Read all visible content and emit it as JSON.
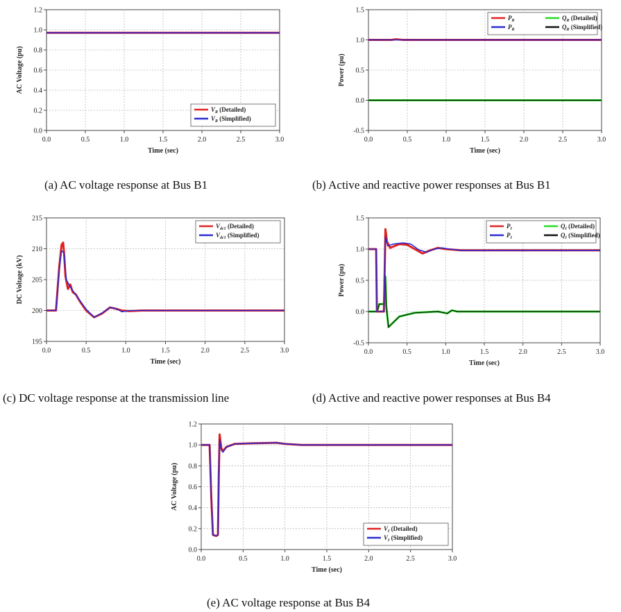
{
  "captions": {
    "a": "(a) AC voltage response at Bus B1",
    "b": "(b) Active and reactive power responses at Bus B1",
    "c": "(c) DC voltage response at the transmission line",
    "d": "(d) Active and reactive power responses at Bus B4",
    "e": "(e) AC voltage response at Bus B4"
  },
  "chart_data": [
    {
      "id": "a",
      "type": "line",
      "xlabel": "Time (sec)",
      "ylabel": "AC Voltage (pu)",
      "xlim": [
        0,
        3.0
      ],
      "ylim": [
        0,
        1.2
      ],
      "xticks": [
        "0.0",
        "0.5",
        "1.0",
        "1.5",
        "2.0",
        "2.5",
        "3.0"
      ],
      "yticks": [
        "0.0",
        "0.2",
        "0.4",
        "0.6",
        "0.8",
        "1.0",
        "1.2"
      ],
      "grid": true,
      "legend_position": "bottom-right",
      "legend": [
        {
          "label": "VR (Detailed)",
          "main": "V",
          "sub": "R",
          "rest": " (Detailed)",
          "color": "#e02020"
        },
        {
          "label": "VR (Simplified)",
          "main": "V",
          "sub": "R",
          "rest": " (Simplified)",
          "color": "#2a2ad0"
        }
      ],
      "series": [
        {
          "name": "VR (Detailed)",
          "color": "#e02020",
          "width": 3,
          "points": [
            [
              0,
              0.97
            ],
            [
              3.0,
              0.97
            ]
          ]
        },
        {
          "name": "VR (Simplified)",
          "color": "#2a2ad0",
          "width": 1.6,
          "points": [
            [
              0,
              0.97
            ],
            [
              3.0,
              0.97
            ]
          ]
        }
      ]
    },
    {
      "id": "b",
      "type": "line",
      "xlabel": "Time (sec)",
      "ylabel": "Power (pu)",
      "xlim": [
        0,
        3.0
      ],
      "ylim": [
        -0.5,
        1.5
      ],
      "xticks": [
        "0.0",
        "0.5",
        "1.0",
        "1.5",
        "2.0",
        "2.5",
        "3.0"
      ],
      "yticks": [
        "-0.5",
        "0.0",
        "0.5",
        "1.0",
        "1.5"
      ],
      "grid": true,
      "legend_position": "top-right",
      "legend_columns": 2,
      "legend": [
        {
          "label": "PR (Detailed)",
          "main": "P",
          "sub": "R",
          "rest": "",
          "color": "#e02020"
        },
        {
          "label": "QR (Detailed)",
          "main": "Q",
          "sub": "R",
          "rest": " (Detailed)",
          "color": "#22dd22"
        },
        {
          "label": "PR (Simplified)",
          "main": "P",
          "sub": "R",
          "rest": "",
          "color": "#2a2ad0"
        },
        {
          "label": "QR (Simplified)",
          "main": "Q",
          "sub": "R",
          "rest": " (Simplified)",
          "color": "#111111"
        }
      ],
      "series": [
        {
          "name": "PR (Detailed)",
          "color": "#e02020",
          "width": 3,
          "points": [
            [
              0,
              1.0
            ],
            [
              0.3,
              1.0
            ],
            [
              0.35,
              1.01
            ],
            [
              0.45,
              1.0
            ],
            [
              3.0,
              1.0
            ]
          ]
        },
        {
          "name": "PR (Simplified)",
          "color": "#2a2ad0",
          "width": 1.6,
          "points": [
            [
              0,
              1.0
            ],
            [
              3.0,
              1.0
            ]
          ]
        },
        {
          "name": "QR (Detailed)",
          "color": "#22dd22",
          "width": 3,
          "points": [
            [
              0,
              0.0
            ],
            [
              3.0,
              0.0
            ]
          ]
        },
        {
          "name": "QR (Simplified)",
          "color": "#111111",
          "width": 1.2,
          "points": [
            [
              0,
              0.0
            ],
            [
              3.0,
              0.0
            ]
          ]
        }
      ]
    },
    {
      "id": "c",
      "type": "line",
      "xlabel": "Time (sec)",
      "ylabel": "DC Voltage (kV)",
      "xlim": [
        0,
        3.0
      ],
      "ylim": [
        195,
        215
      ],
      "xticks": [
        "0.0",
        "0.5",
        "1.0",
        "1.5",
        "2.0",
        "2.5",
        "3.0"
      ],
      "yticks": [
        "195",
        "200",
        "205",
        "210",
        "215"
      ],
      "grid": true,
      "legend_position": "top-right",
      "legend": [
        {
          "label": "Vdc1 (Detailed)",
          "main": "V",
          "sub": "dc1",
          "rest": " (Detailed)",
          "color": "#e02020"
        },
        {
          "label": "Vdc1 (Simplified)",
          "main": "V",
          "sub": "dc1",
          "rest": " (Simplified)",
          "color": "#2a2ad0"
        }
      ],
      "series": [
        {
          "name": "Vdc1 (Detailed)",
          "color": "#e02020",
          "width": 3,
          "points": [
            [
              0,
              200
            ],
            [
              0.12,
              200
            ],
            [
              0.16,
              207
            ],
            [
              0.19,
              210.6
            ],
            [
              0.21,
              211
            ],
            [
              0.22,
              209.5
            ],
            [
              0.24,
              205.5
            ],
            [
              0.27,
              203.5
            ],
            [
              0.3,
              204.2
            ],
            [
              0.33,
              203
            ],
            [
              0.37,
              202.6
            ],
            [
              0.42,
              201.5
            ],
            [
              0.5,
              200
            ],
            [
              0.6,
              198.9
            ],
            [
              0.7,
              199.5
            ],
            [
              0.8,
              200.5
            ],
            [
              0.87,
              200.3
            ],
            [
              0.95,
              200
            ],
            [
              1.05,
              199.9
            ],
            [
              1.2,
              200
            ],
            [
              3.0,
              200
            ]
          ]
        },
        {
          "name": "Vdc1 (Simplified)",
          "color": "#2a2ad0",
          "width": 1.6,
          "points": [
            [
              0,
              200
            ],
            [
              0.12,
              200
            ],
            [
              0.16,
              206.5
            ],
            [
              0.19,
              209.7
            ],
            [
              0.22,
              209.3
            ],
            [
              0.25,
              205
            ],
            [
              0.3,
              203.8
            ],
            [
              0.4,
              202
            ],
            [
              0.5,
              200.2
            ],
            [
              0.6,
              198.9
            ],
            [
              0.7,
              199.6
            ],
            [
              0.8,
              200.5
            ],
            [
              0.88,
              200.3
            ],
            [
              0.95,
              199.8
            ],
            [
              1.05,
              200
            ],
            [
              3.0,
              200
            ]
          ]
        }
      ]
    },
    {
      "id": "d",
      "type": "line",
      "xlabel": "Time (sec)",
      "ylabel": "Power (pu)",
      "xlim": [
        0,
        3.0
      ],
      "ylim": [
        -0.5,
        1.5
      ],
      "xticks": [
        "0.0",
        "0.5",
        "1.0",
        "1.5",
        "2.0",
        "2.5",
        "3.0"
      ],
      "yticks": [
        "-0.5",
        "0.0",
        "0.5",
        "1.0",
        "1.5"
      ],
      "grid": true,
      "legend_position": "top-right",
      "legend_columns": 2,
      "legend": [
        {
          "label": "PI (Detailed)",
          "main": "P",
          "sub": "I",
          "rest": "",
          "color": "#e02020"
        },
        {
          "label": "QI (Detailed)",
          "main": "Q",
          "sub": "I",
          "rest": " (Detailed)",
          "color": "#22dd22"
        },
        {
          "label": "PI (Simplified)",
          "main": "P",
          "sub": "I",
          "rest": "",
          "color": "#2a2ad0"
        },
        {
          "label": "QI (Simplified)",
          "main": "Q",
          "sub": "I",
          "rest": " (Simplified)",
          "color": "#111111"
        }
      ],
      "series": [
        {
          "name": "QI (Detailed)",
          "color": "#22dd22",
          "width": 3,
          "points": [
            [
              0,
              0
            ],
            [
              0.1,
              0
            ],
            [
              0.12,
              0.03
            ],
            [
              0.14,
              0.12
            ],
            [
              0.2,
              0.12
            ],
            [
              0.22,
              0.55
            ],
            [
              0.23,
              0.1
            ],
            [
              0.26,
              -0.25
            ],
            [
              0.3,
              -0.2
            ],
            [
              0.4,
              -0.08
            ],
            [
              0.6,
              -0.02
            ],
            [
              0.9,
              0.0
            ],
            [
              1.02,
              -0.03
            ],
            [
              1.08,
              0.02
            ],
            [
              1.15,
              0
            ],
            [
              3.0,
              0
            ]
          ]
        },
        {
          "name": "QI (Simplified)",
          "color": "#111111",
          "width": 1.2,
          "points": [
            [
              0,
              0
            ],
            [
              0.1,
              0
            ],
            [
              0.12,
              0.03
            ],
            [
              0.14,
              0.12
            ],
            [
              0.2,
              0.12
            ],
            [
              0.22,
              0.58
            ],
            [
              0.23,
              0.1
            ],
            [
              0.26,
              -0.25
            ],
            [
              0.3,
              -0.2
            ],
            [
              0.4,
              -0.08
            ],
            [
              0.6,
              -0.02
            ],
            [
              0.9,
              0.0
            ],
            [
              1.02,
              -0.03
            ],
            [
              1.08,
              0.02
            ],
            [
              1.15,
              0
            ],
            [
              3.0,
              0
            ]
          ]
        },
        {
          "name": "PI (Detailed)",
          "color": "#e02020",
          "width": 3,
          "points": [
            [
              0,
              1.0
            ],
            [
              0.1,
              1.0
            ],
            [
              0.11,
              0.0
            ],
            [
              0.2,
              0.0
            ],
            [
              0.22,
              1.32
            ],
            [
              0.24,
              1.12
            ],
            [
              0.28,
              1.02
            ],
            [
              0.4,
              1.08
            ],
            [
              0.5,
              1.07
            ],
            [
              0.6,
              1.0
            ],
            [
              0.7,
              0.93
            ],
            [
              0.8,
              0.98
            ],
            [
              0.9,
              1.02
            ],
            [
              1.0,
              1.0
            ],
            [
              1.2,
              0.98
            ],
            [
              3.0,
              0.98
            ]
          ]
        },
        {
          "name": "PI (Simplified)",
          "color": "#2a2ad0",
          "width": 1.6,
          "points": [
            [
              0,
              1.0
            ],
            [
              0.1,
              1.0
            ],
            [
              0.11,
              0.0
            ],
            [
              0.2,
              0.0
            ],
            [
              0.22,
              1.2
            ],
            [
              0.25,
              1.05
            ],
            [
              0.32,
              1.08
            ],
            [
              0.45,
              1.1
            ],
            [
              0.55,
              1.08
            ],
            [
              0.65,
              0.99
            ],
            [
              0.75,
              0.95
            ],
            [
              0.85,
              1.0
            ],
            [
              0.95,
              1.02
            ],
            [
              1.05,
              1.0
            ],
            [
              1.2,
              0.98
            ],
            [
              3.0,
              0.98
            ]
          ]
        }
      ]
    },
    {
      "id": "e",
      "type": "line",
      "xlabel": "Time (sec)",
      "ylabel": "AC Voltage (pu)",
      "xlim": [
        0,
        3.0
      ],
      "ylim": [
        0,
        1.2
      ],
      "xticks": [
        "0.0",
        "0.5",
        "1.0",
        "1.5",
        "2.0",
        "2.5",
        "3.0"
      ],
      "yticks": [
        "0.0",
        "0.2",
        "0.4",
        "0.6",
        "0.8",
        "1.0",
        "1.2"
      ],
      "grid": true,
      "legend_position": "bottom-right",
      "legend": [
        {
          "label": "VI (Detailed)",
          "main": "V",
          "sub": "I",
          "rest": " (Detailed)",
          "color": "#e02020"
        },
        {
          "label": "VI (Simplified)",
          "main": "V",
          "sub": "I",
          "rest": " (Simplified)",
          "color": "#2a2ad0"
        }
      ],
      "series": [
        {
          "name": "VI (Detailed)",
          "color": "#e02020",
          "width": 3,
          "points": [
            [
              0,
              1.0
            ],
            [
              0.1,
              1.0
            ],
            [
              0.12,
              0.5
            ],
            [
              0.14,
              0.14
            ],
            [
              0.18,
              0.13
            ],
            [
              0.2,
              0.14
            ],
            [
              0.21,
              0.7
            ],
            [
              0.22,
              1.1
            ],
            [
              0.24,
              0.97
            ],
            [
              0.26,
              0.94
            ],
            [
              0.3,
              0.98
            ],
            [
              0.4,
              1.01
            ],
            [
              0.6,
              1.015
            ],
            [
              0.9,
              1.02
            ],
            [
              1.0,
              1.01
            ],
            [
              1.2,
              1.0
            ],
            [
              3.0,
              1.0
            ]
          ]
        },
        {
          "name": "VI (Simplified)",
          "color": "#2a2ad0",
          "width": 1.6,
          "points": [
            [
              0,
              1.0
            ],
            [
              0.1,
              1.0
            ],
            [
              0.12,
              0.5
            ],
            [
              0.14,
              0.14
            ],
            [
              0.18,
              0.13
            ],
            [
              0.2,
              0.14
            ],
            [
              0.21,
              0.7
            ],
            [
              0.22,
              1.05
            ],
            [
              0.24,
              0.95
            ],
            [
              0.26,
              0.93
            ],
            [
              0.3,
              0.98
            ],
            [
              0.4,
              1.01
            ],
            [
              0.6,
              1.015
            ],
            [
              0.9,
              1.02
            ],
            [
              1.0,
              1.01
            ],
            [
              1.2,
              1.0
            ],
            [
              3.0,
              1.0
            ]
          ]
        }
      ]
    }
  ]
}
